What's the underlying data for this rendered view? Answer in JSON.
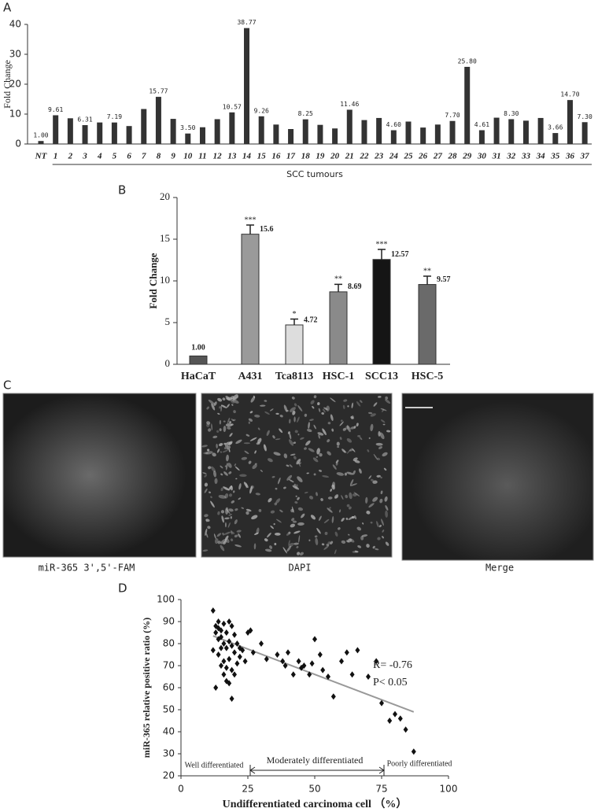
{
  "chart_data": [
    {
      "type": "bar",
      "panel_label": "A",
      "ylabel": "Fold Change",
      "x_group_label": "SCC tumours",
      "color": "#333333",
      "categories": [
        "NT",
        "1",
        "2",
        "3",
        "4",
        "5",
        "6",
        "7",
        "8",
        "9",
        "10",
        "11",
        "12",
        "13",
        "14",
        "15",
        "16",
        "17",
        "18",
        "19",
        "20",
        "21",
        "22",
        "23",
        "24",
        "25",
        "26",
        "27",
        "28",
        "29",
        "30",
        "31",
        "32",
        "33",
        "34",
        "35",
        "36",
        "37"
      ],
      "values": [
        1.0,
        9.61,
        8.6,
        6.31,
        7.2,
        7.19,
        6.0,
        11.7,
        15.77,
        8.4,
        3.5,
        5.6,
        8.3,
        10.57,
        38.77,
        9.26,
        6.5,
        5.0,
        8.25,
        6.4,
        5.2,
        11.46,
        8.0,
        8.7,
        4.6,
        7.5,
        5.5,
        6.5,
        7.7,
        25.8,
        4.61,
        8.8,
        8.3,
        7.8,
        8.7,
        3.66,
        14.7,
        7.3
      ],
      "value_labels": [
        "1.00",
        "9.61",
        null,
        "6.31",
        null,
        "7.19",
        null,
        null,
        "15.77",
        null,
        "3.50",
        null,
        null,
        "10.57",
        "38.77",
        "9.26",
        null,
        null,
        "8.25",
        null,
        null,
        "11.46",
        null,
        null,
        "4.60",
        null,
        null,
        null,
        "7.70",
        "25.80",
        "4.61",
        null,
        "8.30",
        null,
        null,
        "3.66",
        "14.70",
        "7.30"
      ],
      "ylim": [
        0,
        40
      ],
      "yticks": [
        0,
        10,
        20,
        30,
        40
      ]
    },
    {
      "type": "bar",
      "panel_label": "B",
      "ylabel": "Fold Change",
      "categories": [
        "HaCaT",
        "A431",
        "Tca8113",
        "HSC-1",
        "SCC13",
        "HSC-5"
      ],
      "values": [
        1.0,
        15.6,
        4.72,
        8.69,
        12.57,
        9.57
      ],
      "value_labels": [
        "1.00",
        "15.6",
        "4.72",
        "8.69",
        "12.57",
        "9.57"
      ],
      "errors": [
        null,
        1.1,
        0.7,
        0.9,
        1.2,
        1.0
      ],
      "significance": [
        null,
        "***",
        "*",
        "**",
        "***",
        "**"
      ],
      "colors": [
        "#555555",
        "#9a9a9a",
        "#dddddd",
        "#8a8a8a",
        "#151515",
        "#6a6a6a"
      ],
      "ylim": [
        0,
        20
      ],
      "yticks": [
        0,
        5,
        10,
        15,
        20
      ]
    },
    {
      "type": "scatter",
      "panel_label": "D",
      "xlabel": "Undifferentiated carcinoma cell （%）",
      "ylabel": "miR-365 relative positive ratio (%)",
      "annotations": [
        "R= -0.76",
        "P< 0.05"
      ],
      "regions": [
        "Well differentiated",
        "Moderately differentiated",
        "Poorly differentiated"
      ],
      "x": [
        12,
        12,
        13,
        13,
        13,
        14,
        14,
        14,
        14,
        15,
        15,
        15,
        15,
        16,
        16,
        16,
        16,
        17,
        17,
        17,
        17,
        18,
        18,
        18,
        18,
        19,
        19,
        19,
        19,
        20,
        20,
        20,
        21,
        21,
        22,
        22,
        23,
        24,
        25,
        26,
        27,
        30,
        32,
        36,
        38,
        39,
        40,
        42,
        44,
        45,
        46,
        48,
        49,
        50,
        52,
        53,
        55,
        57,
        60,
        62,
        64,
        66,
        70,
        73,
        75,
        78,
        80,
        82,
        84,
        87
      ],
      "y": [
        95,
        77,
        88,
        85,
        60,
        90,
        82,
        75,
        87,
        86,
        78,
        70,
        83,
        89,
        80,
        72,
        66,
        85,
        78,
        69,
        63,
        90,
        81,
        73,
        62,
        88,
        79,
        55,
        68,
        84,
        76,
        66,
        80,
        71,
        78,
        74,
        77,
        72,
        85,
        86,
        76,
        80,
        73,
        75,
        72,
        70,
        76,
        66,
        72,
        69,
        70,
        66,
        71,
        82,
        75,
        68,
        65,
        56,
        72,
        76,
        66,
        77,
        65,
        72,
        53,
        45,
        48,
        46,
        41,
        31
      ],
      "trendline": {
        "x": [
          12,
          87
        ],
        "y": [
          83.5,
          49
        ]
      },
      "xlim": [
        0,
        100
      ],
      "xticks": [
        0,
        25,
        50,
        75,
        100
      ],
      "ylim": [
        20,
        100
      ],
      "yticks": [
        20,
        30,
        40,
        50,
        60,
        70,
        80,
        90,
        100
      ]
    }
  ],
  "panel_c": {
    "label": "C",
    "captions": [
      "miR-365 3',5'-FAM",
      "DAPI",
      "Merge"
    ]
  }
}
